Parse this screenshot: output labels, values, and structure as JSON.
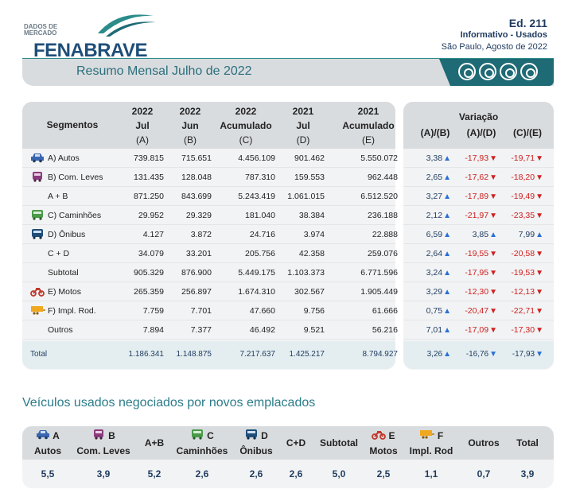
{
  "header": {
    "logo_small": "DADOS DE MERCADO",
    "logo_brand": "FENABRAVE",
    "edition": "Ed. 211",
    "info": "Informativo - Usados",
    "date": "São Paulo, Agosto de 2022",
    "banner_title": "Resumo Mensal Julho de 2022"
  },
  "table": {
    "col_segmentos": "Segmentos",
    "columns": [
      {
        "l1": "2022",
        "l2": "Jul",
        "l3": "(A)"
      },
      {
        "l1": "2022",
        "l2": "Jun",
        "l3": "(B)"
      },
      {
        "l1": "2022",
        "l2": "Acumulado",
        "l3": "(C)"
      },
      {
        "l1": "2021",
        "l2": "Jul",
        "l3": "(D)"
      },
      {
        "l1": "2021",
        "l2": "Acumulado",
        "l3": "(E)"
      }
    ],
    "var_title": "Variação",
    "var_cols": [
      "(A)/(B)",
      "(A)/(D)",
      "(C)/(E)"
    ],
    "rows": [
      {
        "label": "A) Autos",
        "icon": "car-icon",
        "v": [
          "739.815",
          "715.651",
          "4.456.109",
          "901.462",
          "5.550.072"
        ],
        "var": [
          "3,38",
          "-17,93",
          "-19,71"
        ],
        "dir": [
          "up",
          "down",
          "down"
        ]
      },
      {
        "label": "B) Com. Leves",
        "icon": "van-icon",
        "v": [
          "131.435",
          "128.048",
          "787.310",
          "159.553",
          "962.448"
        ],
        "var": [
          "2,65",
          "-17,62",
          "-18,20"
        ],
        "dir": [
          "up",
          "down",
          "down"
        ]
      },
      {
        "label": "A + B",
        "icon": "",
        "v": [
          "871.250",
          "843.699",
          "5.243.419",
          "1.061.015",
          "6.512.520"
        ],
        "var": [
          "3,27",
          "-17,89",
          "-19,49"
        ],
        "dir": [
          "up",
          "down",
          "down"
        ]
      },
      {
        "label": "C) Caminhões",
        "icon": "truck-icon",
        "v": [
          "29.952",
          "29.329",
          "181.040",
          "38.384",
          "236.188"
        ],
        "var": [
          "2,12",
          "-21,97",
          "-23,35"
        ],
        "dir": [
          "up",
          "down",
          "down"
        ]
      },
      {
        "label": "D) Ônibus",
        "icon": "bus-icon",
        "v": [
          "4.127",
          "3.872",
          "24.716",
          "3.974",
          "22.888"
        ],
        "var": [
          "6,59",
          "3,85",
          "7,99"
        ],
        "dir": [
          "up",
          "up",
          "up"
        ]
      },
      {
        "label": "C + D",
        "icon": "",
        "v": [
          "34.079",
          "33.201",
          "205.756",
          "42.358",
          "259.076"
        ],
        "var": [
          "2,64",
          "-19,55",
          "-20,58"
        ],
        "dir": [
          "up",
          "down",
          "down"
        ]
      },
      {
        "label": "Subtotal",
        "icon": "",
        "v": [
          "905.329",
          "876.900",
          "5.449.175",
          "1.103.373",
          "6.771.596"
        ],
        "var": [
          "3,24",
          "-17,95",
          "-19,53"
        ],
        "dir": [
          "up",
          "down",
          "down"
        ]
      },
      {
        "label": "E) Motos",
        "icon": "motorcycle-icon",
        "v": [
          "265.359",
          "256.897",
          "1.674.310",
          "302.567",
          "1.905.449"
        ],
        "var": [
          "3,29",
          "-12,30",
          "-12,13"
        ],
        "dir": [
          "up",
          "down",
          "down"
        ]
      },
      {
        "label": "F) Impl. Rod.",
        "icon": "trailer-icon",
        "v": [
          "7.759",
          "7.701",
          "47.660",
          "9.756",
          "61.666"
        ],
        "var": [
          "0,75",
          "-20,47",
          "-22,71"
        ],
        "dir": [
          "up",
          "down",
          "down"
        ]
      },
      {
        "label": "Outros",
        "icon": "",
        "v": [
          "7.894",
          "7.377",
          "46.492",
          "9.521",
          "56.216"
        ],
        "var": [
          "7,01",
          "-17,09",
          "-17,30"
        ],
        "dir": [
          "up",
          "down",
          "down"
        ]
      }
    ],
    "total": {
      "label": "Total",
      "v": [
        "1.186.341",
        "1.148.875",
        "7.217.637",
        "1.425.217",
        "8.794.927"
      ],
      "var": [
        "3,26",
        "-16,76",
        "-17,93"
      ],
      "dir": [
        "up",
        "down",
        "down"
      ]
    }
  },
  "used": {
    "title": "Veículos usados negociados por novos emplacados",
    "cols": [
      {
        "l1": "A",
        "l2": "Autos",
        "icon": "car-icon",
        "val": "5,5"
      },
      {
        "l1": "B",
        "l2": "Com. Leves",
        "icon": "van-icon",
        "val": "3,9"
      },
      {
        "l1": "A+B",
        "l2": "",
        "icon": "",
        "val": "5,2"
      },
      {
        "l1": "C",
        "l2": "Caminhões",
        "icon": "truck-icon",
        "val": "2,6"
      },
      {
        "l1": "D",
        "l2": "Ônibus",
        "icon": "bus-icon",
        "val": "2,6"
      },
      {
        "l1": "C+D",
        "l2": "",
        "icon": "",
        "val": "2,6"
      },
      {
        "l1": "Subtotal",
        "l2": "",
        "icon": "",
        "val": "5,0"
      },
      {
        "l1": "E",
        "l2": "Motos",
        "icon": "motorcycle-icon",
        "val": "2,5"
      },
      {
        "l1": "F",
        "l2": "Impl. Rod",
        "icon": "trailer-icon",
        "val": "1,1"
      },
      {
        "l1": "Outros",
        "l2": "",
        "icon": "",
        "val": "0,7"
      },
      {
        "l1": "Total",
        "l2": "",
        "icon": "",
        "val": "3,9"
      }
    ]
  },
  "colors": {
    "teal": "#1e6a75",
    "navy": "#1f3b5f",
    "red": "#d02020",
    "blue_arrow": "#2a6fd6"
  }
}
